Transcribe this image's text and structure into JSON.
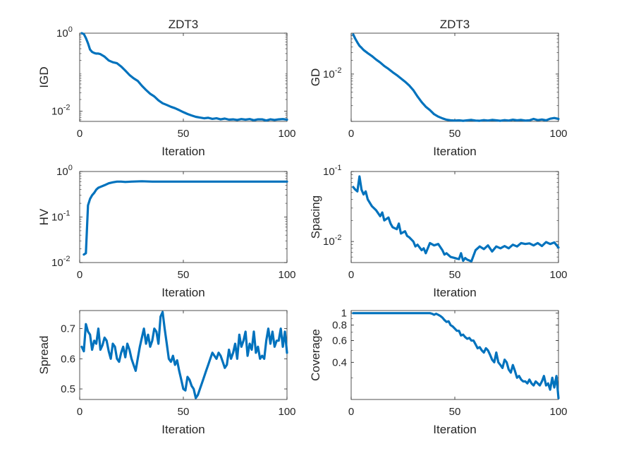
{
  "figure": {
    "line_color": "#0072BD",
    "axes_color": "#262626"
  },
  "chart_data": [
    {
      "type": "line",
      "title": "ZDT3",
      "xlabel": "Iteration",
      "ylabel": "IGD",
      "xlim": [
        0,
        100
      ],
      "ylim": [
        0.0055,
        1.0
      ],
      "yscale": "log",
      "xticks": [
        {
          "v": 0,
          "label": "0"
        },
        {
          "v": 50,
          "label": "50"
        },
        {
          "v": 100,
          "label": "100"
        }
      ],
      "yticks": [
        {
          "v": 0.01,
          "base": "10",
          "exp": "-2"
        },
        {
          "v": 1,
          "base": "10",
          "exp": "0"
        }
      ],
      "series": [
        {
          "x": [
            1,
            2,
            3,
            4,
            5,
            6,
            7,
            8,
            9,
            10,
            12,
            14,
            16,
            18,
            20,
            22,
            24,
            26,
            28,
            30,
            32,
            34,
            36,
            38,
            40,
            42,
            44,
            46,
            48,
            50,
            52,
            54,
            56,
            58,
            60,
            62,
            64,
            66,
            68,
            70,
            72,
            74,
            76,
            78,
            80,
            82,
            84,
            86,
            88,
            90,
            92,
            94,
            96,
            98,
            100
          ],
          "y": [
            1.0,
            0.95,
            0.75,
            0.55,
            0.38,
            0.33,
            0.31,
            0.3,
            0.3,
            0.29,
            0.25,
            0.2,
            0.18,
            0.17,
            0.14,
            0.11,
            0.085,
            0.07,
            0.06,
            0.045,
            0.035,
            0.028,
            0.024,
            0.019,
            0.016,
            0.0145,
            0.013,
            0.012,
            0.0107,
            0.0095,
            0.0085,
            0.0078,
            0.0072,
            0.0069,
            0.0066,
            0.0068,
            0.0064,
            0.0066,
            0.0062,
            0.0065,
            0.0061,
            0.0062,
            0.006,
            0.0063,
            0.0061,
            0.0063,
            0.0059,
            0.0062,
            0.0062,
            0.0058,
            0.0062,
            0.006,
            0.0062,
            0.0063,
            0.0061
          ]
        }
      ]
    },
    {
      "type": "line",
      "title": "ZDT3",
      "xlabel": "Iteration",
      "ylabel": "GD",
      "xlim": [
        0,
        100
      ],
      "ylim": [
        0.0009,
        0.08
      ],
      "yscale": "log",
      "xticks": [
        {
          "v": 0,
          "label": "0"
        },
        {
          "v": 50,
          "label": "50"
        },
        {
          "v": 100,
          "label": "100"
        }
      ],
      "yticks": [
        {
          "v": 0.01,
          "base": "10",
          "exp": "-2"
        }
      ],
      "series": [
        {
          "x": [
            1,
            2,
            3,
            4,
            5,
            6,
            8,
            10,
            12,
            14,
            16,
            18,
            20,
            22,
            24,
            26,
            28,
            30,
            32,
            34,
            36,
            38,
            40,
            42,
            44,
            46,
            48,
            50,
            52,
            54,
            56,
            58,
            60,
            62,
            64,
            66,
            68,
            70,
            72,
            74,
            76,
            78,
            80,
            82,
            84,
            86,
            88,
            90,
            92,
            94,
            96,
            98,
            100
          ],
          "y": [
            0.075,
            0.06,
            0.05,
            0.042,
            0.038,
            0.034,
            0.029,
            0.025,
            0.021,
            0.018,
            0.015,
            0.013,
            0.011,
            0.0095,
            0.008,
            0.0068,
            0.0056,
            0.0044,
            0.0032,
            0.0024,
            0.0019,
            0.0016,
            0.0013,
            0.00115,
            0.00105,
            0.00098,
            0.00095,
            0.00094,
            0.00095,
            0.00093,
            0.00095,
            0.00097,
            0.00094,
            0.00093,
            0.00096,
            0.00094,
            0.00097,
            0.00095,
            0.00093,
            0.00096,
            0.00094,
            0.00098,
            0.00095,
            0.00097,
            0.00094,
            0.00095,
            0.00102,
            0.00096,
            0.00099,
            0.00095,
            0.00103,
            0.00107,
            0.00102
          ]
        }
      ]
    },
    {
      "type": "line",
      "title": "",
      "xlabel": "Iteration",
      "ylabel": "HV",
      "xlim": [
        0,
        100
      ],
      "ylim": [
        0.01,
        1.0
      ],
      "yscale": "log",
      "xticks": [
        {
          "v": 0,
          "label": "0"
        },
        {
          "v": 50,
          "label": "50"
        },
        {
          "v": 100,
          "label": "100"
        }
      ],
      "yticks": [
        {
          "v": 0.01,
          "base": "10",
          "exp": "-2"
        },
        {
          "v": 0.1,
          "base": "10",
          "exp": "-1"
        },
        {
          "v": 1,
          "base": "10",
          "exp": "0"
        }
      ],
      "series": [
        {
          "x": [
            2,
            3,
            4,
            5,
            6,
            7,
            8,
            9,
            10,
            12,
            14,
            16,
            18,
            20,
            22,
            25,
            30,
            35,
            40,
            50,
            60,
            70,
            80,
            90,
            100
          ],
          "y": [
            0.015,
            0.016,
            0.18,
            0.25,
            0.3,
            0.34,
            0.4,
            0.44,
            0.46,
            0.5,
            0.55,
            0.58,
            0.6,
            0.6,
            0.59,
            0.6,
            0.61,
            0.6,
            0.6,
            0.6,
            0.6,
            0.6,
            0.6,
            0.6,
            0.6
          ]
        }
      ]
    },
    {
      "type": "line",
      "title": "",
      "xlabel": "Iteration",
      "ylabel": "Spacing",
      "xlim": [
        0,
        100
      ],
      "ylim": [
        0.005,
        0.1
      ],
      "yscale": "log",
      "xticks": [
        {
          "v": 0,
          "label": "0"
        },
        {
          "v": 50,
          "label": "50"
        },
        {
          "v": 100,
          "label": "100"
        }
      ],
      "yticks": [
        {
          "v": 0.01,
          "base": "10",
          "exp": "-2"
        },
        {
          "v": 0.1,
          "base": "10",
          "exp": "-1"
        }
      ],
      "series": [
        {
          "x": [
            1,
            2,
            3,
            4,
            5,
            6,
            7,
            8,
            10,
            12,
            14,
            15,
            16,
            18,
            19,
            20,
            22,
            23,
            24,
            26,
            27,
            28,
            30,
            31,
            32,
            34,
            35,
            36,
            38,
            40,
            42,
            44,
            45,
            46,
            48,
            50,
            51,
            52,
            53,
            54,
            55,
            56,
            58,
            60,
            62,
            64,
            66,
            68,
            70,
            72,
            74,
            76,
            78,
            80,
            82,
            84,
            86,
            88,
            90,
            92,
            94,
            96,
            98,
            100
          ],
          "y": [
            0.06,
            0.055,
            0.052,
            0.085,
            0.055,
            0.047,
            0.052,
            0.04,
            0.032,
            0.028,
            0.023,
            0.026,
            0.02,
            0.022,
            0.018,
            0.016,
            0.015,
            0.018,
            0.013,
            0.014,
            0.012,
            0.0115,
            0.01,
            0.0085,
            0.009,
            0.0075,
            0.008,
            0.0068,
            0.0095,
            0.0088,
            0.0092,
            0.0075,
            0.0065,
            0.0068,
            0.006,
            0.0058,
            0.0057,
            0.0056,
            0.0068,
            0.0053,
            0.0058,
            0.0055,
            0.0052,
            0.0075,
            0.0085,
            0.0078,
            0.0088,
            0.0072,
            0.0085,
            0.008,
            0.0086,
            0.008,
            0.009,
            0.0085,
            0.0095,
            0.0092,
            0.0094,
            0.0088,
            0.0095,
            0.0086,
            0.0098,
            0.0092,
            0.0097,
            0.0082
          ]
        }
      ]
    },
    {
      "type": "line",
      "title": "",
      "xlabel": "Iteration",
      "ylabel": "Spread",
      "xlim": [
        0,
        100
      ],
      "ylim": [
        0.465,
        0.76
      ],
      "yscale": "linear",
      "xticks": [
        {
          "v": 0,
          "label": "0"
        },
        {
          "v": 50,
          "label": "50"
        },
        {
          "v": 100,
          "label": "100"
        }
      ],
      "yticks": [
        {
          "v": 0.5,
          "label": "0.5"
        },
        {
          "v": 0.6,
          "label": "0.6"
        },
        {
          "v": 0.7,
          "label": "0.7"
        }
      ],
      "series": [
        {
          "x": [
            1,
            2,
            3,
            4,
            5,
            6,
            7,
            8,
            9,
            10,
            11,
            12,
            13,
            14,
            15,
            16,
            17,
            18,
            19,
            20,
            21,
            22,
            23,
            24,
            25,
            26,
            27,
            28,
            29,
            30,
            31,
            32,
            33,
            34,
            35,
            36,
            37,
            38,
            39,
            40,
            41,
            42,
            43,
            44,
            45,
            46,
            47,
            48,
            49,
            50,
            51,
            52,
            53,
            54,
            55,
            56,
            57,
            58,
            59,
            60,
            61,
            62,
            63,
            64,
            65,
            66,
            67,
            68,
            69,
            70,
            71,
            72,
            73,
            74,
            75,
            76,
            77,
            78,
            79,
            80,
            81,
            82,
            83,
            84,
            85,
            86,
            87,
            88,
            89,
            90,
            91,
            92,
            93,
            94,
            95,
            96,
            97,
            98,
            99,
            100
          ],
          "y": [
            0.64,
            0.625,
            0.715,
            0.69,
            0.68,
            0.63,
            0.66,
            0.65,
            0.7,
            0.63,
            0.645,
            0.67,
            0.66,
            0.625,
            0.6,
            0.65,
            0.64,
            0.6,
            0.59,
            0.62,
            0.64,
            0.605,
            0.65,
            0.63,
            0.6,
            0.58,
            0.56,
            0.6,
            0.64,
            0.67,
            0.7,
            0.65,
            0.68,
            0.64,
            0.66,
            0.7,
            0.69,
            0.65,
            0.74,
            0.755,
            0.7,
            0.65,
            0.6,
            0.59,
            0.61,
            0.58,
            0.595,
            0.56,
            0.53,
            0.5,
            0.495,
            0.54,
            0.53,
            0.51,
            0.5,
            0.47,
            0.48,
            0.5,
            0.52,
            0.54,
            0.56,
            0.58,
            0.6,
            0.62,
            0.61,
            0.6,
            0.62,
            0.61,
            0.59,
            0.57,
            0.58,
            0.63,
            0.6,
            0.62,
            0.65,
            0.6,
            0.68,
            0.64,
            0.66,
            0.69,
            0.61,
            0.65,
            0.63,
            0.69,
            0.62,
            0.64,
            0.6,
            0.61,
            0.6,
            0.66,
            0.7,
            0.65,
            0.69,
            0.64,
            0.66,
            0.66,
            0.7,
            0.64,
            0.69,
            0.62
          ]
        }
      ]
    },
    {
      "type": "line",
      "title": "",
      "xlabel": "Iteration",
      "ylabel": "Coverage",
      "xlim": [
        0,
        100
      ],
      "ylim": [
        0.2,
        1.05
      ],
      "yscale": "log",
      "xticks": [
        {
          "v": 0,
          "label": "0"
        },
        {
          "v": 50,
          "label": "50"
        },
        {
          "v": 100,
          "label": "100"
        }
      ],
      "yticks": [
        {
          "v": 0.4,
          "label": "0.4"
        },
        {
          "v": 0.6,
          "label": "0.6"
        },
        {
          "v": 0.8,
          "label": "0.8"
        },
        {
          "v": 1.0,
          "label": "1"
        }
      ],
      "series": [
        {
          "x": [
            1,
            5,
            10,
            15,
            20,
            25,
            30,
            35,
            38,
            39,
            40,
            41,
            42,
            43,
            44,
            45,
            46,
            47,
            48,
            49,
            50,
            51,
            52,
            53,
            54,
            55,
            56,
            57,
            58,
            59,
            60,
            61,
            62,
            63,
            64,
            65,
            66,
            67,
            68,
            69,
            70,
            71,
            72,
            73,
            74,
            75,
            76,
            77,
            78,
            79,
            80,
            81,
            82,
            83,
            84,
            85,
            86,
            87,
            88,
            89,
            90,
            91,
            92,
            93,
            94,
            95,
            96,
            97,
            98,
            99,
            100
          ],
          "y": [
            1.0,
            1.0,
            1.0,
            1.0,
            1.0,
            1.0,
            1.0,
            1.0,
            1.0,
            0.99,
            0.97,
            0.99,
            0.97,
            0.95,
            0.92,
            0.88,
            0.85,
            0.86,
            0.8,
            0.78,
            0.75,
            0.72,
            0.72,
            0.66,
            0.67,
            0.64,
            0.62,
            0.63,
            0.6,
            0.6,
            0.56,
            0.52,
            0.53,
            0.5,
            0.48,
            0.52,
            0.5,
            0.46,
            0.42,
            0.4,
            0.48,
            0.4,
            0.38,
            0.36,
            0.42,
            0.4,
            0.35,
            0.33,
            0.38,
            0.34,
            0.3,
            0.31,
            0.29,
            0.28,
            0.28,
            0.27,
            0.29,
            0.27,
            0.26,
            0.28,
            0.27,
            0.26,
            0.28,
            0.31,
            0.26,
            0.27,
            0.24,
            0.3,
            0.25,
            0.31,
            0.205
          ]
        }
      ]
    }
  ]
}
